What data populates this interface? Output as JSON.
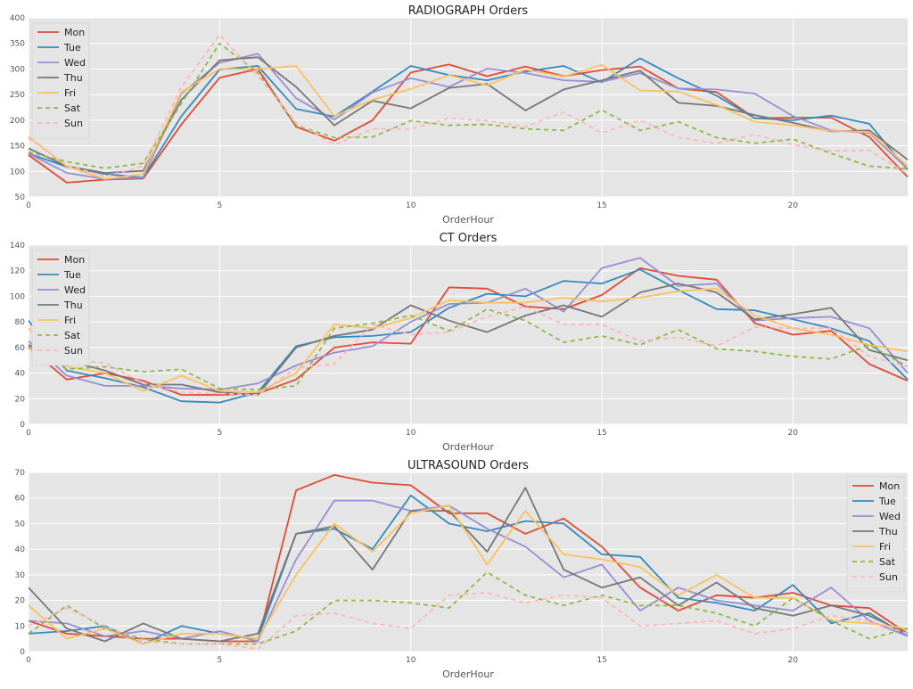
{
  "colors": {
    "plot_bg": "#E5E5E5",
    "grid": "#FFFFFF",
    "Mon": "#E24A33",
    "Tue": "#348ABD",
    "Wed": "#988ED5",
    "Thu": "#777777",
    "Fri": "#FBC15E",
    "Sat": "#8EBA42",
    "Sun": "#FFB5B8"
  },
  "chart_data": [
    {
      "type": "line",
      "title": "RADIOGRAPH Orders",
      "xlabel": "OrderHour",
      "ylabel": "",
      "xlim": [
        0,
        23
      ],
      "ylim": [
        50,
        400
      ],
      "xticks": [
        0,
        5,
        10,
        15,
        20
      ],
      "yticks": [
        50,
        100,
        150,
        200,
        250,
        300,
        350,
        400
      ],
      "grid": true,
      "legend": "top-left",
      "x": [
        0,
        1,
        2,
        3,
        4,
        5,
        6,
        7,
        8,
        9,
        10,
        11,
        12,
        13,
        14,
        15,
        16,
        17,
        18,
        19,
        20,
        21,
        22,
        23
      ],
      "series": [
        {
          "name": "Mon",
          "dashed": false,
          "values": [
            132,
            78,
            84,
            86,
            192,
            283,
            300,
            187,
            160,
            200,
            293,
            309,
            286,
            305,
            286,
            298,
            305,
            262,
            255,
            204,
            205,
            205,
            167,
            89
          ]
        },
        {
          "name": "Tue",
          "dashed": false,
          "values": [
            135,
            109,
            95,
            88,
            208,
            299,
            306,
            222,
            207,
            256,
            306,
            288,
            278,
            295,
            306,
            274,
            321,
            282,
            248,
            204,
            200,
            209,
            193,
            103
          ]
        },
        {
          "name": "Wed",
          "dashed": false,
          "values": [
            135,
            97,
            85,
            88,
            252,
            312,
            330,
            243,
            201,
            254,
            282,
            265,
            301,
            292,
            278,
            275,
            292,
            262,
            260,
            252,
            208,
            180,
            175,
            105
          ]
        },
        {
          "name": "Thu",
          "dashed": false,
          "values": [
            145,
            110,
            97,
            101,
            240,
            317,
            323,
            265,
            190,
            238,
            223,
            263,
            271,
            219,
            260,
            278,
            297,
            234,
            228,
            210,
            195,
            178,
            180,
            123
          ]
        },
        {
          "name": "Fri",
          "dashed": false,
          "values": [
            168,
            110,
            85,
            95,
            255,
            300,
            300,
            306,
            208,
            240,
            261,
            288,
            268,
            299,
            285,
            308,
            258,
            256,
            230,
            197,
            190,
            179,
            177,
            110
          ]
        },
        {
          "name": "Sat",
          "dashed": true,
          "values": [
            138,
            119,
            106,
            116,
            233,
            350,
            293,
            190,
            166,
            167,
            199,
            190,
            192,
            183,
            180,
            220,
            180,
            197,
            166,
            155,
            163,
            135,
            110,
            105
          ]
        },
        {
          "name": "Sun",
          "dashed": true,
          "values": [
            165,
            112,
            90,
            110,
            265,
            367,
            287,
            195,
            152,
            183,
            183,
            204,
            199,
            187,
            216,
            175,
            200,
            166,
            155,
            172,
            152,
            140,
            141,
            95
          ]
        }
      ]
    },
    {
      "type": "line",
      "title": "CT Orders",
      "xlabel": "OrderHour",
      "ylabel": "",
      "xlim": [
        0,
        23
      ],
      "ylim": [
        0,
        140
      ],
      "xticks": [
        0,
        5,
        10,
        15,
        20
      ],
      "yticks": [
        0,
        20,
        40,
        60,
        80,
        100,
        120,
        140
      ],
      "grid": true,
      "legend": "top-left",
      "x": [
        0,
        1,
        2,
        3,
        4,
        5,
        6,
        7,
        8,
        9,
        10,
        11,
        12,
        13,
        14,
        15,
        16,
        17,
        18,
        19,
        20,
        21,
        22,
        23
      ],
      "series": [
        {
          "name": "Mon",
          "dashed": false,
          "values": [
            60,
            35,
            40,
            34,
            23,
            23,
            24,
            35,
            60,
            64,
            63,
            107,
            106,
            92,
            90,
            101,
            122,
            116,
            113,
            79,
            70,
            73,
            47,
            34
          ]
        },
        {
          "name": "Tue",
          "dashed": false,
          "values": [
            81,
            42,
            36,
            29,
            18,
            17,
            25,
            61,
            68,
            69,
            72,
            91,
            102,
            100,
            112,
            110,
            121,
            105,
            90,
            89,
            82,
            75,
            65,
            35
          ]
        },
        {
          "name": "Wed",
          "dashed": false,
          "values": [
            65,
            38,
            30,
            30,
            28,
            27,
            32,
            46,
            56,
            61,
            80,
            94,
            95,
            106,
            88,
            122,
            130,
            108,
            110,
            81,
            83,
            84,
            75,
            40
          ]
        },
        {
          "name": "Thu",
          "dashed": false,
          "values": [
            62,
            50,
            42,
            31,
            31,
            25,
            23,
            60,
            69,
            74,
            93,
            81,
            72,
            85,
            93,
            84,
            103,
            110,
            103,
            82,
            86,
            91,
            58,
            50
          ]
        },
        {
          "name": "Fri",
          "dashed": false,
          "values": [
            75,
            45,
            40,
            26,
            38,
            26,
            25,
            40,
            78,
            75,
            83,
            97,
            95,
            95,
            99,
            96,
            99,
            104,
            106,
            85,
            75,
            70,
            62,
            57
          ]
        },
        {
          "name": "Sat",
          "dashed": true,
          "values": [
            61,
            43,
            45,
            41,
            43,
            28,
            27,
            30,
            75,
            79,
            85,
            73,
            90,
            81,
            64,
            69,
            62,
            74,
            59,
            57,
            53,
            51,
            62,
            45
          ]
        },
        {
          "name": "Sun",
          "dashed": true,
          "values": [
            59,
            50,
            48,
            32,
            25,
            24,
            23,
            44,
            47,
            78,
            70,
            72,
            84,
            92,
            78,
            78,
            65,
            68,
            61,
            76,
            75,
            75,
            53,
            45
          ]
        }
      ]
    },
    {
      "type": "line",
      "title": "ULTRASOUND Orders",
      "xlabel": "OrderHour",
      "ylabel": "",
      "xlim": [
        0,
        23
      ],
      "ylim": [
        0,
        70
      ],
      "xticks": [
        0,
        5,
        10,
        15,
        20
      ],
      "yticks": [
        0,
        10,
        20,
        30,
        40,
        50,
        60,
        70
      ],
      "grid": true,
      "legend": "top-right",
      "x": [
        0,
        1,
        2,
        3,
        4,
        5,
        6,
        7,
        8,
        9,
        10,
        11,
        12,
        13,
        14,
        15,
        16,
        17,
        18,
        19,
        20,
        21,
        22,
        23
      ],
      "series": [
        {
          "name": "Mon",
          "dashed": false,
          "values": [
            12,
            7,
            6,
            5,
            5,
            4,
            4,
            63,
            69,
            66,
            65,
            54,
            54,
            46,
            52,
            41,
            25,
            16,
            22,
            21,
            23,
            18,
            17,
            7
          ]
        },
        {
          "name": "Tue",
          "dashed": false,
          "values": [
            7,
            8,
            10,
            3,
            10,
            7,
            5,
            46,
            48,
            40,
            61,
            50,
            47,
            51,
            50,
            38,
            37,
            21,
            19,
            16,
            26,
            11,
            15,
            6
          ]
        },
        {
          "name": "Wed",
          "dashed": false,
          "values": [
            12,
            11,
            6,
            8,
            5,
            8,
            4,
            36,
            59,
            59,
            55,
            57,
            48,
            41,
            29,
            34,
            16,
            25,
            20,
            18,
            16,
            25,
            12,
            6
          ]
        },
        {
          "name": "Thu",
          "dashed": false,
          "values": [
            25,
            9,
            4,
            11,
            5,
            4,
            7,
            46,
            49,
            32,
            55,
            55,
            39,
            64,
            32,
            25,
            29,
            18,
            27,
            17,
            14,
            18,
            14,
            7
          ]
        },
        {
          "name": "Fri",
          "dashed": false,
          "values": [
            18,
            5,
            9,
            3,
            7,
            7,
            5,
            30,
            50,
            39,
            54,
            57,
            34,
            55,
            38,
            36,
            33,
            22,
            30,
            21,
            21,
            12,
            11,
            9
          ]
        },
        {
          "name": "Sat",
          "dashed": true,
          "values": [
            7,
            18,
            9,
            5,
            3,
            3,
            3,
            8,
            20,
            20,
            19,
            17,
            31,
            22,
            18,
            22,
            18,
            18,
            15,
            10,
            21,
            12,
            5,
            9
          ]
        },
        {
          "name": "Sun",
          "dashed": true,
          "values": [
            10,
            17,
            10,
            4,
            3,
            3,
            1,
            14,
            15,
            11,
            9,
            22,
            23,
            19,
            22,
            21,
            10,
            11,
            12,
            7,
            9,
            14,
            12,
            7
          ]
        }
      ]
    }
  ]
}
